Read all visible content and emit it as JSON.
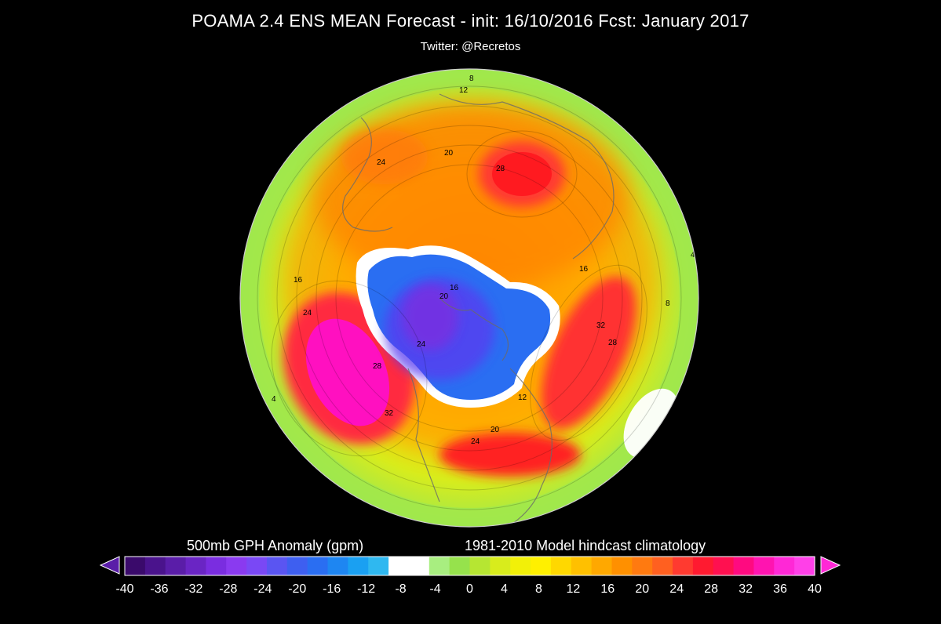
{
  "title": "POAMA 2.4 ENS MEAN Forecast  -  init: 16/10/2016  Fcst: January 2017",
  "subtitle": "Twitter: @Recretos",
  "colorbar": {
    "left_label": "500mb GPH Anomaly (gpm)",
    "right_label": "1981-2010 Model hindcast climatology",
    "ticks": [
      "-40",
      "-36",
      "-32",
      "-28",
      "-24",
      "-20",
      "-16",
      "-12",
      "-8",
      "-4",
      "0",
      "4",
      "8",
      "12",
      "16",
      "20",
      "24",
      "28",
      "32",
      "36",
      "40"
    ],
    "colors": [
      "#3a0a6b",
      "#4a138c",
      "#5a1da8",
      "#6a25c4",
      "#7a2de0",
      "#8a3af0",
      "#7a48f5",
      "#5a55f2",
      "#3e5ff0",
      "#2a6ef2",
      "#1e86f2",
      "#1aa0f2",
      "#2fb8f0",
      "#ffffff",
      "#ffffff",
      "#a8ee80",
      "#96e24c",
      "#b6e632",
      "#d8ec1c",
      "#f2f008",
      "#fff000",
      "#ffd800",
      "#ffc000",
      "#ffa800",
      "#ff9000",
      "#ff7a10",
      "#ff6020",
      "#ff3a30",
      "#ff1a30",
      "#ff1050",
      "#ff0a80",
      "#ff14b0",
      "#ff28d6",
      "#ff40e8"
    ]
  },
  "map_labels": [
    "8",
    "12",
    "20",
    "24",
    "28",
    "4",
    "16",
    "24",
    "4",
    "16",
    "20",
    "24",
    "28",
    "32",
    "28",
    "24",
    "20",
    "16",
    "12",
    "8",
    "4",
    "32"
  ]
}
